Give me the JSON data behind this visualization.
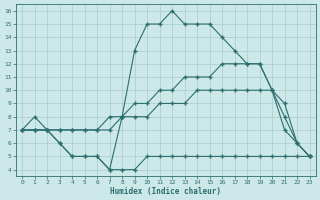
{
  "xlabel": "Humidex (Indice chaleur)",
  "x": [
    0,
    1,
    2,
    3,
    4,
    5,
    6,
    7,
    8,
    9,
    10,
    11,
    12,
    13,
    14,
    15,
    16,
    17,
    18,
    19,
    20,
    21,
    22,
    23
  ],
  "line1": [
    7,
    8,
    7,
    6,
    5,
    5,
    5,
    4,
    8,
    13,
    15,
    15,
    16,
    15,
    15,
    15,
    14,
    13,
    12,
    12,
    10,
    8,
    6,
    5
  ],
  "line2": [
    7,
    7,
    7,
    6,
    5,
    5,
    5,
    4,
    4,
    4,
    5,
    5,
    5,
    5,
    5,
    5,
    5,
    5,
    5,
    5,
    5,
    5,
    5,
    5
  ],
  "line3": [
    7,
    7,
    7,
    7,
    7,
    7,
    7,
    8,
    8,
    9,
    9,
    10,
    10,
    11,
    11,
    11,
    12,
    12,
    12,
    12,
    10,
    7,
    6,
    5
  ],
  "line4": [
    7,
    7,
    7,
    7,
    7,
    7,
    7,
    7,
    8,
    8,
    8,
    9,
    9,
    9,
    10,
    10,
    10,
    10,
    10,
    10,
    10,
    9,
    6,
    5
  ],
  "xlim": [
    -0.5,
    23.5
  ],
  "ylim": [
    3.5,
    16.5
  ],
  "yticks": [
    4,
    5,
    6,
    7,
    8,
    9,
    10,
    11,
    12,
    13,
    14,
    15,
    16
  ],
  "xticks": [
    0,
    1,
    2,
    3,
    4,
    5,
    6,
    7,
    8,
    9,
    10,
    11,
    12,
    13,
    14,
    15,
    16,
    17,
    18,
    19,
    20,
    21,
    22,
    23
  ],
  "color": "#2d6e6e",
  "bg_color": "#cce8e8",
  "grid_color": "#aacccc",
  "marker": "+",
  "markersize": 3,
  "linewidth": 0.8,
  "tick_fontsize": 4.5,
  "xlabel_fontsize": 5.5
}
